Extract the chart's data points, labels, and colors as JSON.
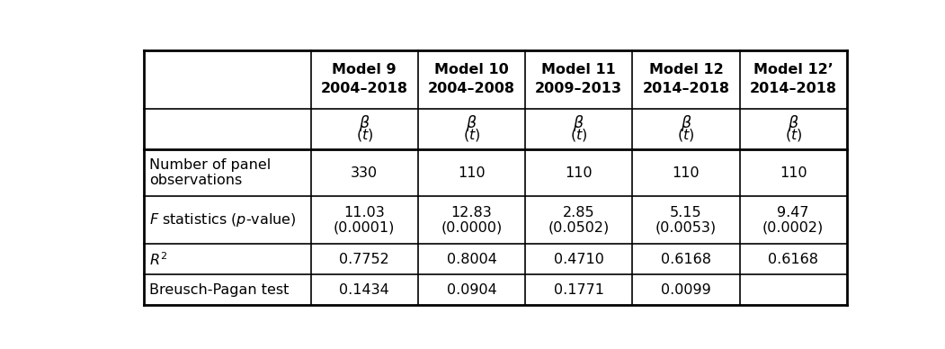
{
  "col_headers": [
    [
      "Model 9",
      "2004–2018"
    ],
    [
      "Model 10",
      "2004–2008"
    ],
    [
      "Model 11",
      "2009–2013"
    ],
    [
      "Model 12",
      "2014–2018"
    ],
    [
      "Model 12’",
      "2014–2018"
    ]
  ],
  "rows": [
    {
      "label_lines": [
        "Number of panel",
        "observations"
      ],
      "label_italic": false,
      "values": [
        "330",
        "110",
        "110",
        "110",
        "110"
      ],
      "values2": [
        "",
        "",
        "",
        "",
        ""
      ]
    },
    {
      "label_lines": [
        "$F$ statistics ($p$-value)"
      ],
      "label_italic": false,
      "values": [
        "11.03",
        "12.83",
        "2.85",
        "5.15",
        "9.47"
      ],
      "values2": [
        "(0.0001)",
        "(0.0000)",
        "(0.0502)",
        "(0.0053)",
        "(0.0002)"
      ]
    },
    {
      "label_lines": [
        "$R^2$"
      ],
      "label_italic": false,
      "values": [
        "0.7752",
        "0.8004",
        "0.4710",
        "0.6168",
        "0.6168"
      ],
      "values2": [
        "",
        "",
        "",
        "",
        ""
      ]
    },
    {
      "label_lines": [
        "Breusch-Pagan test"
      ],
      "label_italic": false,
      "values": [
        "0.1434",
        "0.0904",
        "0.1771",
        "0.0099",
        ""
      ],
      "values2": [
        "",
        "",
        "",
        "",
        ""
      ]
    }
  ],
  "background_color": "#ffffff",
  "font_size": 11.5
}
